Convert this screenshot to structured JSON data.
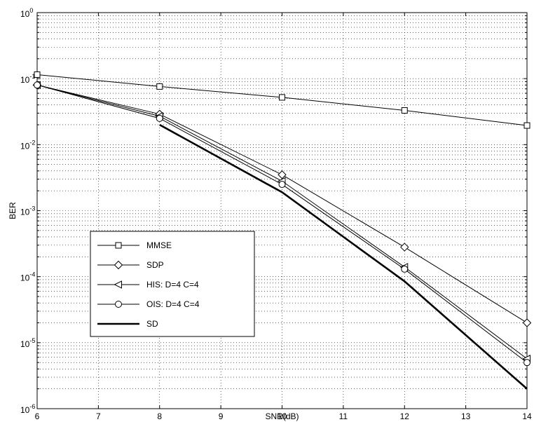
{
  "chart_data": {
    "type": "line",
    "xlabel": "SNR(dB)",
    "ylabel": "BER",
    "yscale": "log",
    "xlim": [
      6,
      14
    ],
    "ylim": [
      1e-06,
      1
    ],
    "grid": true,
    "legend_position": "bottom-left",
    "x_ticks": [
      "6",
      "7",
      "8",
      "9",
      "10",
      "11",
      "12",
      "13",
      "14"
    ],
    "y_ticks": [
      {
        "base": "10",
        "exp": "-6"
      },
      {
        "base": "10",
        "exp": "-5"
      },
      {
        "base": "10",
        "exp": "-4"
      },
      {
        "base": "10",
        "exp": "-3"
      },
      {
        "base": "10",
        "exp": "-2"
      },
      {
        "base": "10",
        "exp": "-1"
      },
      {
        "base": "10",
        "exp": "0"
      }
    ],
    "series": [
      {
        "name": "MMSE",
        "marker": "square",
        "thick": false,
        "x": [
          6,
          8,
          10,
          12,
          14
        ],
        "y": [
          0.115,
          0.076,
          0.052,
          0.033,
          0.0195
        ]
      },
      {
        "name": "SDP",
        "marker": "diamond",
        "thick": false,
        "x": [
          6,
          8,
          10,
          12,
          14
        ],
        "y": [
          0.08,
          0.029,
          0.0035,
          0.00028,
          2e-05
        ]
      },
      {
        "name": "HIS: D=4 C=4",
        "marker": "triangle-left",
        "thick": false,
        "x": [
          6,
          8,
          10,
          12,
          14
        ],
        "y": [
          0.08,
          0.027,
          0.0028,
          0.00014,
          5.7e-06
        ]
      },
      {
        "name": "OIS: D=4 C=4",
        "marker": "circle",
        "thick": false,
        "x": [
          6,
          8,
          10,
          12,
          14
        ],
        "y": [
          0.08,
          0.025,
          0.0025,
          0.00013,
          5e-06
        ]
      },
      {
        "name": "SD",
        "marker": "none",
        "thick": true,
        "x": [
          8,
          10,
          12,
          14
        ],
        "y": [
          0.02,
          0.0019,
          8.5e-05,
          2e-06
        ]
      }
    ]
  }
}
